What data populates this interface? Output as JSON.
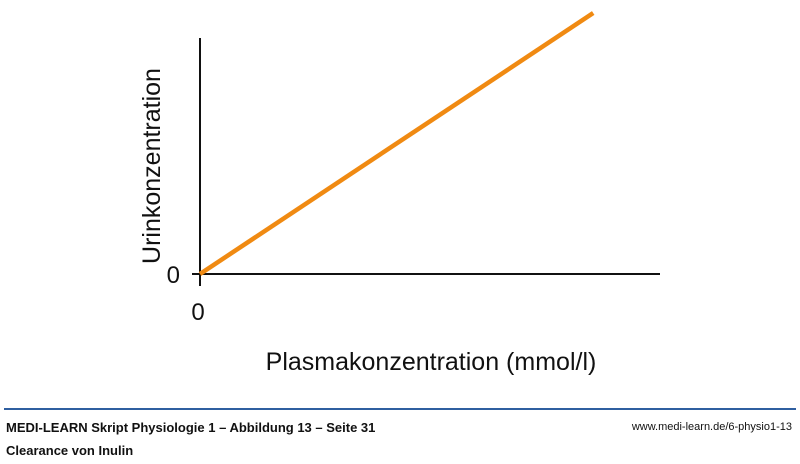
{
  "chart_data": {
    "type": "line",
    "title": "",
    "xlabel": "Plasmakonzentration (mmol/l)",
    "ylabel": "Urinkonzentration",
    "x_tick_labels": [
      "0"
    ],
    "y_tick_labels": [
      "0"
    ],
    "series": [
      {
        "x": [
          0,
          1
        ],
        "y": [
          0,
          1
        ],
        "color": "#f08a12"
      }
    ],
    "xlim": [
      0,
      1.17
    ],
    "ylim": [
      0,
      1
    ],
    "grid": false,
    "legend": "none"
  },
  "footer": {
    "title": "MEDI-LEARN Skript Physiologie 1 – Abbildung 13 – Seite 31",
    "url": "www.medi-learn.de/6-physio1-13",
    "caption": "Clearance von Inulin"
  },
  "colors": {
    "line": "#f08a12",
    "axis": "#111111",
    "rule": "#2f5fa0"
  }
}
